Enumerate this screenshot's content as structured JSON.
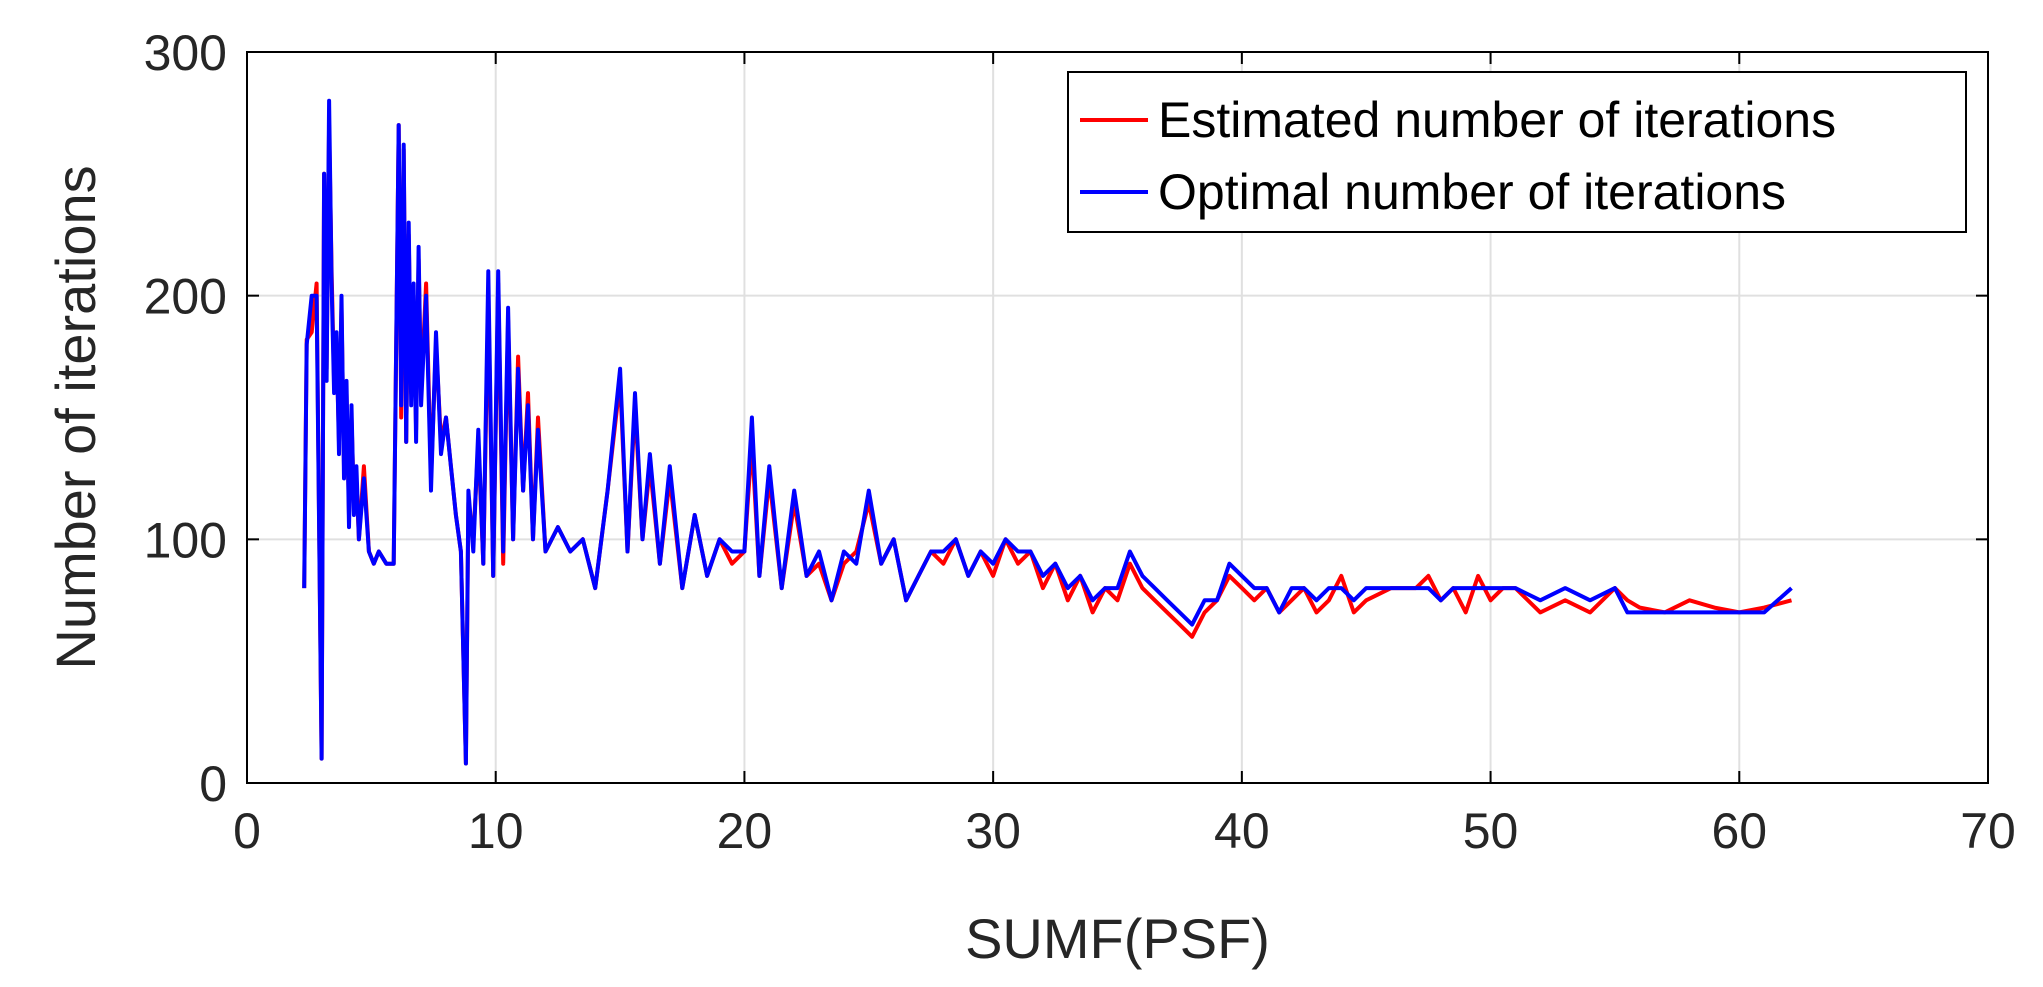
{
  "chart_data": {
    "type": "line",
    "xlabel": "SUMF(PSF)",
    "ylabel": "Number of iterations",
    "xlim": [
      0,
      70
    ],
    "ylim": [
      0,
      300
    ],
    "xticks": [
      0,
      10,
      20,
      30,
      40,
      50,
      60,
      70
    ],
    "yticks": [
      0,
      100,
      200,
      300
    ],
    "xtick_labels": [
      "0",
      "10",
      "20",
      "30",
      "40",
      "50",
      "60",
      "70"
    ],
    "ytick_labels": [
      "0",
      "100",
      "200",
      "300"
    ],
    "grid": true,
    "legend_position": "top-right",
    "series": [
      {
        "name": "Estimated number of iterations",
        "color": "#ff0000",
        "x": [
          2.3,
          2.4,
          2.6,
          2.8,
          3.0,
          3.1,
          3.2,
          3.3,
          3.4,
          3.5,
          3.6,
          3.7,
          3.8,
          3.9,
          4.0,
          4.1,
          4.2,
          4.3,
          4.4,
          4.5,
          4.7,
          4.9,
          5.1,
          5.3,
          5.6,
          5.9,
          6.1,
          6.2,
          6.3,
          6.4,
          6.5,
          6.6,
          6.7,
          6.8,
          6.9,
          7.0,
          7.2,
          7.4,
          7.6,
          7.8,
          8.0,
          8.2,
          8.4,
          8.6,
          8.8,
          8.9,
          9.1,
          9.3,
          9.5,
          9.7,
          9.9,
          10.1,
          10.3,
          10.5,
          10.7,
          10.9,
          11.1,
          11.3,
          11.5,
          11.7,
          12.0,
          12.5,
          13.0,
          13.5,
          14.0,
          14.5,
          15.0,
          15.3,
          15.6,
          15.9,
          16.2,
          16.6,
          17.0,
          17.5,
          18.0,
          18.5,
          19.0,
          19.5,
          20.0,
          20.3,
          20.6,
          21.0,
          21.5,
          22.0,
          22.5,
          23.0,
          23.5,
          24.0,
          24.5,
          25.0,
          25.5,
          26.0,
          26.5,
          27.0,
          27.5,
          28.0,
          28.5,
          29.0,
          29.5,
          30.0,
          30.5,
          31.0,
          31.5,
          32.0,
          32.5,
          33.0,
          33.5,
          34.0,
          34.5,
          35.0,
          35.5,
          36.0,
          36.5,
          37.0,
          37.5,
          38.0,
          38.5,
          39.0,
          39.5,
          40.0,
          40.5,
          41.0,
          41.5,
          42.0,
          42.5,
          43.0,
          43.5,
          44.0,
          44.5,
          45.0,
          46.0,
          47.0,
          47.5,
          48.0,
          48.5,
          49.0,
          49.5,
          50.0,
          50.5,
          51.0,
          52.0,
          53.0,
          54.0,
          55.0,
          55.5,
          56.0,
          57.0,
          58.0,
          59.0,
          60.0,
          61.0,
          62.1
        ],
        "y": [
          80,
          182,
          185,
          205,
          10,
          250,
          170,
          270,
          210,
          165,
          180,
          140,
          195,
          130,
          160,
          110,
          150,
          115,
          125,
          100,
          130,
          95,
          90,
          95,
          90,
          90,
          270,
          150,
          260,
          140,
          225,
          160,
          200,
          145,
          215,
          160,
          205,
          125,
          180,
          140,
          150,
          130,
          110,
          95,
          8,
          115,
          100,
          140,
          90,
          200,
          85,
          205,
          90,
          190,
          100,
          175,
          120,
          160,
          100,
          150,
          95,
          105,
          95,
          100,
          80,
          120,
          165,
          95,
          155,
          100,
          130,
          90,
          125,
          80,
          110,
          85,
          100,
          90,
          95,
          140,
          85,
          125,
          80,
          115,
          85,
          90,
          75,
          90,
          95,
          115,
          90,
          100,
          75,
          85,
          95,
          90,
          100,
          85,
          95,
          85,
          100,
          90,
          95,
          80,
          90,
          75,
          85,
          70,
          80,
          75,
          90,
          80,
          75,
          70,
          65,
          60,
          70,
          75,
          85,
          80,
          75,
          80,
          70,
          75,
          80,
          70,
          75,
          85,
          70,
          75,
          80,
          80,
          85,
          75,
          80,
          70,
          85,
          75,
          80,
          80,
          70,
          75,
          70,
          80,
          75,
          72,
          70,
          75,
          72,
          70,
          72,
          75
        ],
        "description_sample": ""
      },
      {
        "name": "Optimal number of iterations",
        "color": "#0000ff",
        "x": [
          2.3,
          2.4,
          2.6,
          2.8,
          3.0,
          3.1,
          3.2,
          3.3,
          3.4,
          3.5,
          3.6,
          3.7,
          3.8,
          3.9,
          4.0,
          4.1,
          4.2,
          4.3,
          4.4,
          4.5,
          4.7,
          4.9,
          5.1,
          5.3,
          5.6,
          5.9,
          6.1,
          6.2,
          6.3,
          6.4,
          6.5,
          6.6,
          6.7,
          6.8,
          6.9,
          7.0,
          7.2,
          7.4,
          7.6,
          7.8,
          8.0,
          8.2,
          8.4,
          8.6,
          8.8,
          8.9,
          9.1,
          9.3,
          9.5,
          9.7,
          9.9,
          10.1,
          10.3,
          10.5,
          10.7,
          10.9,
          11.1,
          11.3,
          11.5,
          11.7,
          12.0,
          12.5,
          13.0,
          13.5,
          14.0,
          14.5,
          15.0,
          15.3,
          15.6,
          15.9,
          16.2,
          16.6,
          17.0,
          17.5,
          18.0,
          18.5,
          19.0,
          19.5,
          20.0,
          20.3,
          20.6,
          21.0,
          21.5,
          22.0,
          22.5,
          23.0,
          23.5,
          24.0,
          24.5,
          25.0,
          25.5,
          26.0,
          26.5,
          27.0,
          27.5,
          28.0,
          28.5,
          29.0,
          29.5,
          30.0,
          30.5,
          31.0,
          31.5,
          32.0,
          32.5,
          33.0,
          33.5,
          34.0,
          34.5,
          35.0,
          35.5,
          36.0,
          36.5,
          37.0,
          37.5,
          38.0,
          38.5,
          39.0,
          39.5,
          40.0,
          40.5,
          41.0,
          41.5,
          42.0,
          42.5,
          43.0,
          43.5,
          44.0,
          44.5,
          45.0,
          46.0,
          47.0,
          47.5,
          48.0,
          48.5,
          49.0,
          49.5,
          50.0,
          50.5,
          51.0,
          52.0,
          53.0,
          54.0,
          55.0,
          55.5,
          56.0,
          57.0,
          58.0,
          59.0,
          60.0,
          61.0,
          62.1
        ],
        "y": [
          80,
          180,
          200,
          200,
          10,
          250,
          165,
          280,
          205,
          160,
          185,
          135,
          200,
          125,
          165,
          105,
          155,
          110,
          130,
          100,
          125,
          95,
          90,
          95,
          90,
          90,
          270,
          155,
          262,
          140,
          230,
          155,
          205,
          140,
          220,
          155,
          200,
          120,
          185,
          135,
          150,
          130,
          110,
          95,
          8,
          120,
          95,
          145,
          90,
          210,
          85,
          210,
          95,
          195,
          100,
          170,
          120,
          155,
          100,
          145,
          95,
          105,
          95,
          100,
          80,
          120,
          170,
          95,
          160,
          100,
          135,
          90,
          130,
          80,
          110,
          85,
          100,
          95,
          95,
          150,
          85,
          130,
          80,
          120,
          85,
          95,
          75,
          95,
          90,
          120,
          90,
          100,
          75,
          85,
          95,
          95,
          100,
          85,
          95,
          90,
          100,
          95,
          95,
          85,
          90,
          80,
          85,
          75,
          80,
          80,
          95,
          85,
          80,
          75,
          70,
          65,
          75,
          75,
          90,
          85,
          80,
          80,
          70,
          80,
          80,
          75,
          80,
          80,
          75,
          80,
          80,
          80,
          80,
          75,
          80,
          80,
          80,
          80,
          80,
          80,
          75,
          80,
          75,
          80,
          70,
          70,
          70,
          70,
          70,
          70,
          70,
          80
        ]
      }
    ]
  }
}
